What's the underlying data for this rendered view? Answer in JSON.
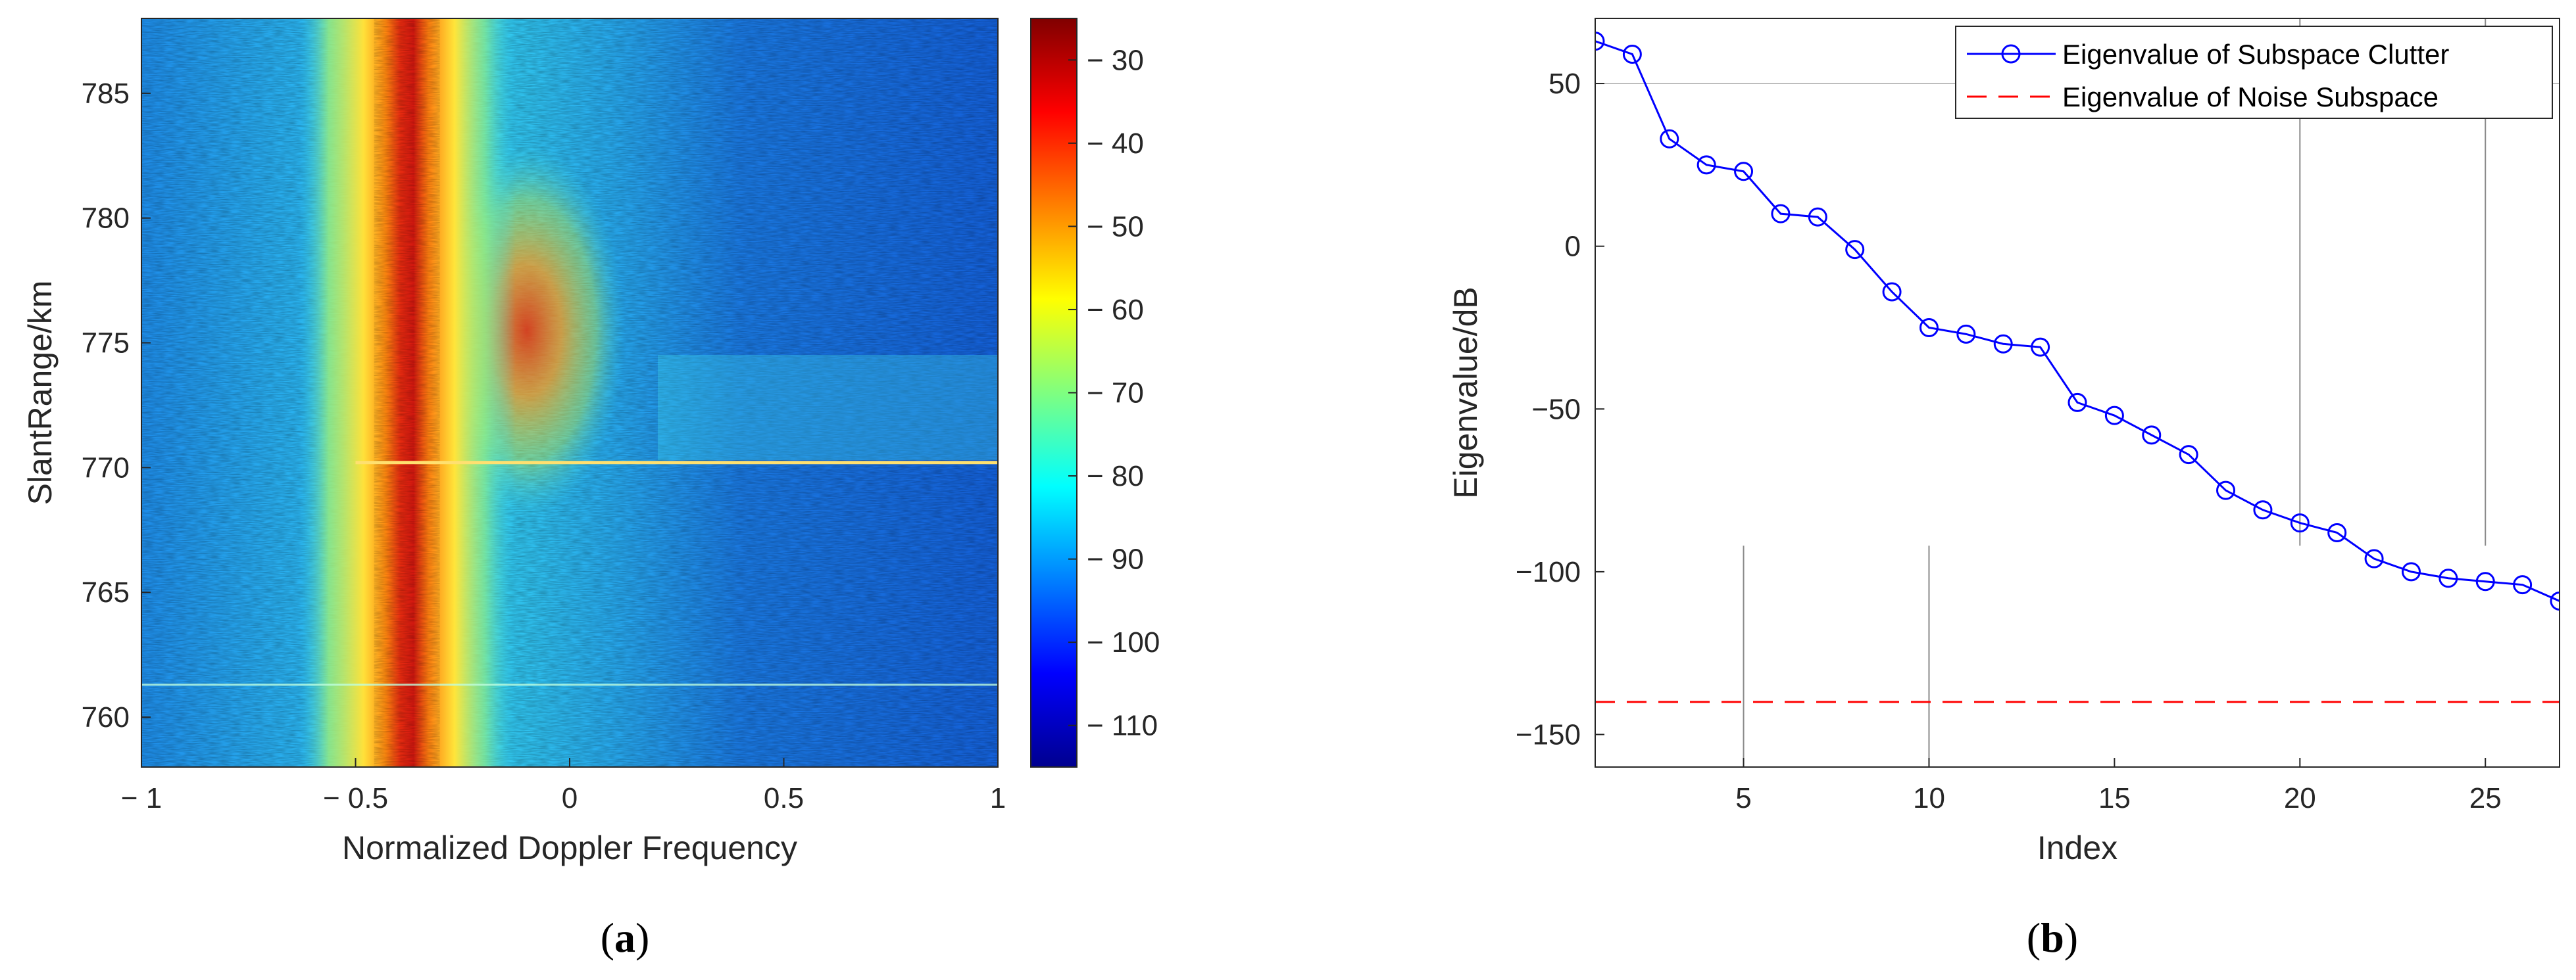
{
  "chart_data": [
    {
      "type": "heatmap",
      "panel_label": "a",
      "title": "",
      "xlabel": "Normalized Doppler Frequency",
      "ylabel": "SlantRange/km",
      "xlim": [
        -1,
        1
      ],
      "ylim": [
        758,
        788
      ],
      "xticks": [
        -1,
        -0.5,
        0,
        0.5,
        1
      ],
      "xtick_labels": [
        "− 1",
        "− 0.5",
        "0",
        "0.5",
        "1"
      ],
      "yticks": [
        760,
        765,
        770,
        775,
        780,
        785
      ],
      "ytick_labels": [
        "760",
        "765",
        "770",
        "775",
        "780",
        "785"
      ],
      "colorbar": {
        "colormap": "jet",
        "range": [
          -115,
          -25
        ],
        "ticks": [
          -30,
          -40,
          -50,
          -60,
          -70,
          -80,
          -90,
          -100,
          -110
        ],
        "tick_labels": [
          "− 30",
          "− 40",
          "− 50",
          "− 60",
          "− 70",
          "− 80",
          "− 90",
          "− 100",
          "− 110"
        ]
      },
      "features": {
        "main_clutter_ridge_center": -0.38,
        "main_ridge_peak_db": -35,
        "secondary_clutter_lobe": {
          "doppler_center": -0.1,
          "range_from_km": 768,
          "range_to_km": 783,
          "peak_db": -40
        },
        "bright_horizontal_line_km": 770.2,
        "faint_horizontal_line_km": 761.3,
        "background_db": -95
      }
    },
    {
      "type": "line",
      "panel_label": "b",
      "title": "",
      "xlabel": "Index",
      "ylabel": "Eigenvalue/dB",
      "xlim": [
        1,
        27
      ],
      "ylim": [
        -160,
        70
      ],
      "xticks": [
        5,
        10,
        15,
        20,
        25
      ],
      "yticks": [
        50,
        0,
        -50,
        -100,
        -150
      ],
      "ytick_labels": [
        "50",
        "0",
        "−50",
        "−100",
        "−150"
      ],
      "legend_position": "top-right",
      "series": [
        {
          "name": "Eigenvalue of Subspace Clutter",
          "color": "#0000ff",
          "marker": "circle",
          "x": [
            1,
            2,
            3,
            4,
            5,
            6,
            7,
            8,
            9,
            10,
            11,
            12,
            13,
            14,
            15,
            16,
            17,
            18,
            19,
            20,
            21,
            22,
            23,
            24,
            25,
            26,
            27
          ],
          "values": [
            63,
            59,
            33,
            25,
            23,
            10,
            9,
            -1,
            -14,
            -25,
            -27,
            -30,
            -31,
            -48,
            -52,
            -58,
            -64,
            -75,
            -81,
            -85,
            -88,
            -96,
            -100,
            -102,
            -103,
            -104,
            -109
          ]
        },
        {
          "name": "Eigenvalue of Noise Subspace",
          "color": "#ff0000",
          "style": "dashed",
          "x": [
            1,
            27
          ],
          "values": [
            -140,
            -140
          ]
        }
      ]
    }
  ],
  "captions": {
    "a": "a",
    "b": "b"
  }
}
